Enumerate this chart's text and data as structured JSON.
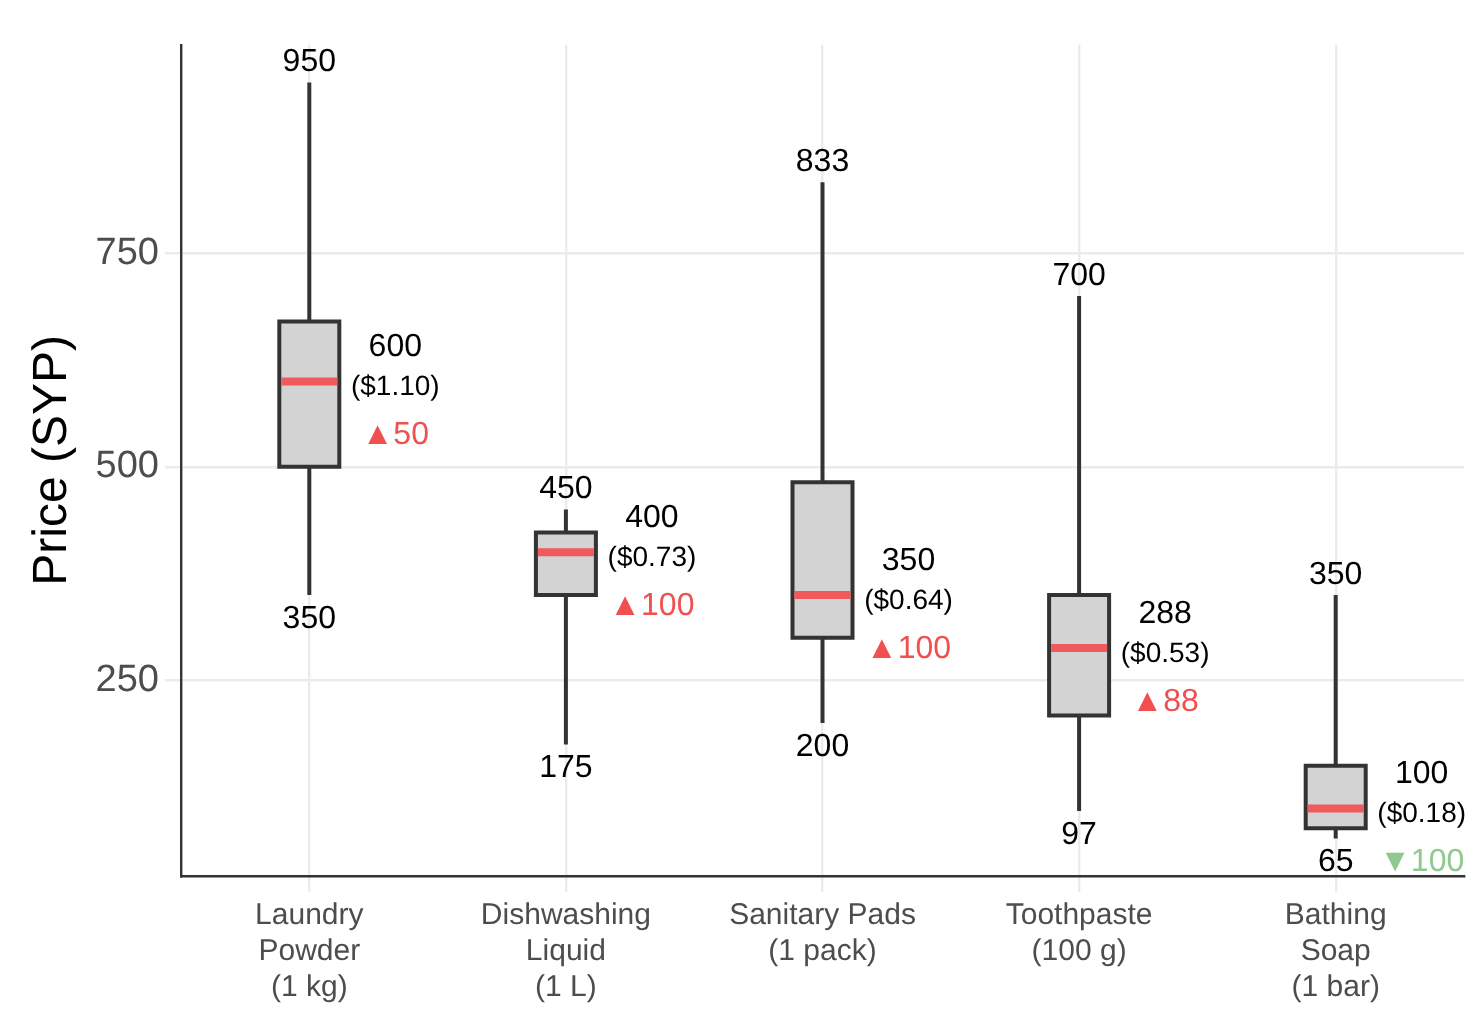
{
  "chart_data": {
    "type": "box",
    "ylabel": "Price (SYP)",
    "categories": [
      "Laundry\nPowder\n(1 kg)",
      "Dishwashing\nLiquid\n(1 L)",
      "Sanitary Pads\n(1 pack)",
      "Toothpaste\n(100 g)",
      "Bathing\nSoap\n(1 bar)"
    ],
    "series": [
      {
        "color": "#d3d3d3",
        "boxes": [
          {
            "low": 350,
            "q1": 500,
            "median": 600,
            "q3": 670,
            "high": 950
          },
          {
            "low": 175,
            "q1": 350,
            "median": 400,
            "q3": 423,
            "high": 450
          },
          {
            "low": 200,
            "q1": 300,
            "median": 350,
            "q3": 482,
            "high": 833
          },
          {
            "low": 97,
            "q1": 209,
            "median": 288,
            "q3": 350,
            "high": 700
          },
          {
            "low": 65,
            "q1": 77,
            "median": 100,
            "q3": 150,
            "high": 350
          }
        ]
      }
    ],
    "ylim": [
      21,
      994
    ],
    "yticks": [
      250,
      500,
      750
    ],
    "grid": true,
    "annotations": [
      {
        "text": "950",
        "x": "Laundry\nPowder\n(1 kg)",
        "y": 950
      },
      {
        "text": "350",
        "x": "Laundry\nPowder\n(1 kg)",
        "y": 350
      },
      {
        "text": "600\n($1.10)\n▲50",
        "x": "Laundry\nPowder\n(1 kg)",
        "y": 600
      },
      {
        "text": "450",
        "x": "Dishwashing\nLiquid\n(1 L)",
        "y": 450
      },
      {
        "text": "175",
        "x": "Dishwashing\nLiquid\n(1 L)",
        "y": 175
      },
      {
        "text": "400\n($0.73)\n▲100",
        "x": "Dishwashing\nLiquid\n(1 L)",
        "y": 400
      },
      {
        "text": "833",
        "x": "Sanitary Pads\n(1 pack)",
        "y": 833
      },
      {
        "text": "200",
        "x": "Sanitary Pads\n(1 pack)",
        "y": 200
      },
      {
        "text": "350\n($0.64)\n▲100",
        "x": "Sanitary Pads\n(1 pack)",
        "y": 350
      },
      {
        "text": "700",
        "x": "Toothpaste\n(100 g)",
        "y": 700
      },
      {
        "text": "97",
        "x": "Toothpaste\n(100 g)",
        "y": 97
      },
      {
        "text": "288\n($0.53)\n▲88",
        "x": "Toothpaste\n(100 g)",
        "y": 288
      },
      {
        "text": "350",
        "x": "Bathing\nSoap\n(1 bar)",
        "y": 350
      },
      {
        "text": "65",
        "x": "Bathing\nSoap\n(1 bar)",
        "y": 65
      },
      {
        "text": "100\n($0.18)\n▼100",
        "x": "Bathing\nSoap\n(1 bar)",
        "y": 100
      }
    ]
  }
}
